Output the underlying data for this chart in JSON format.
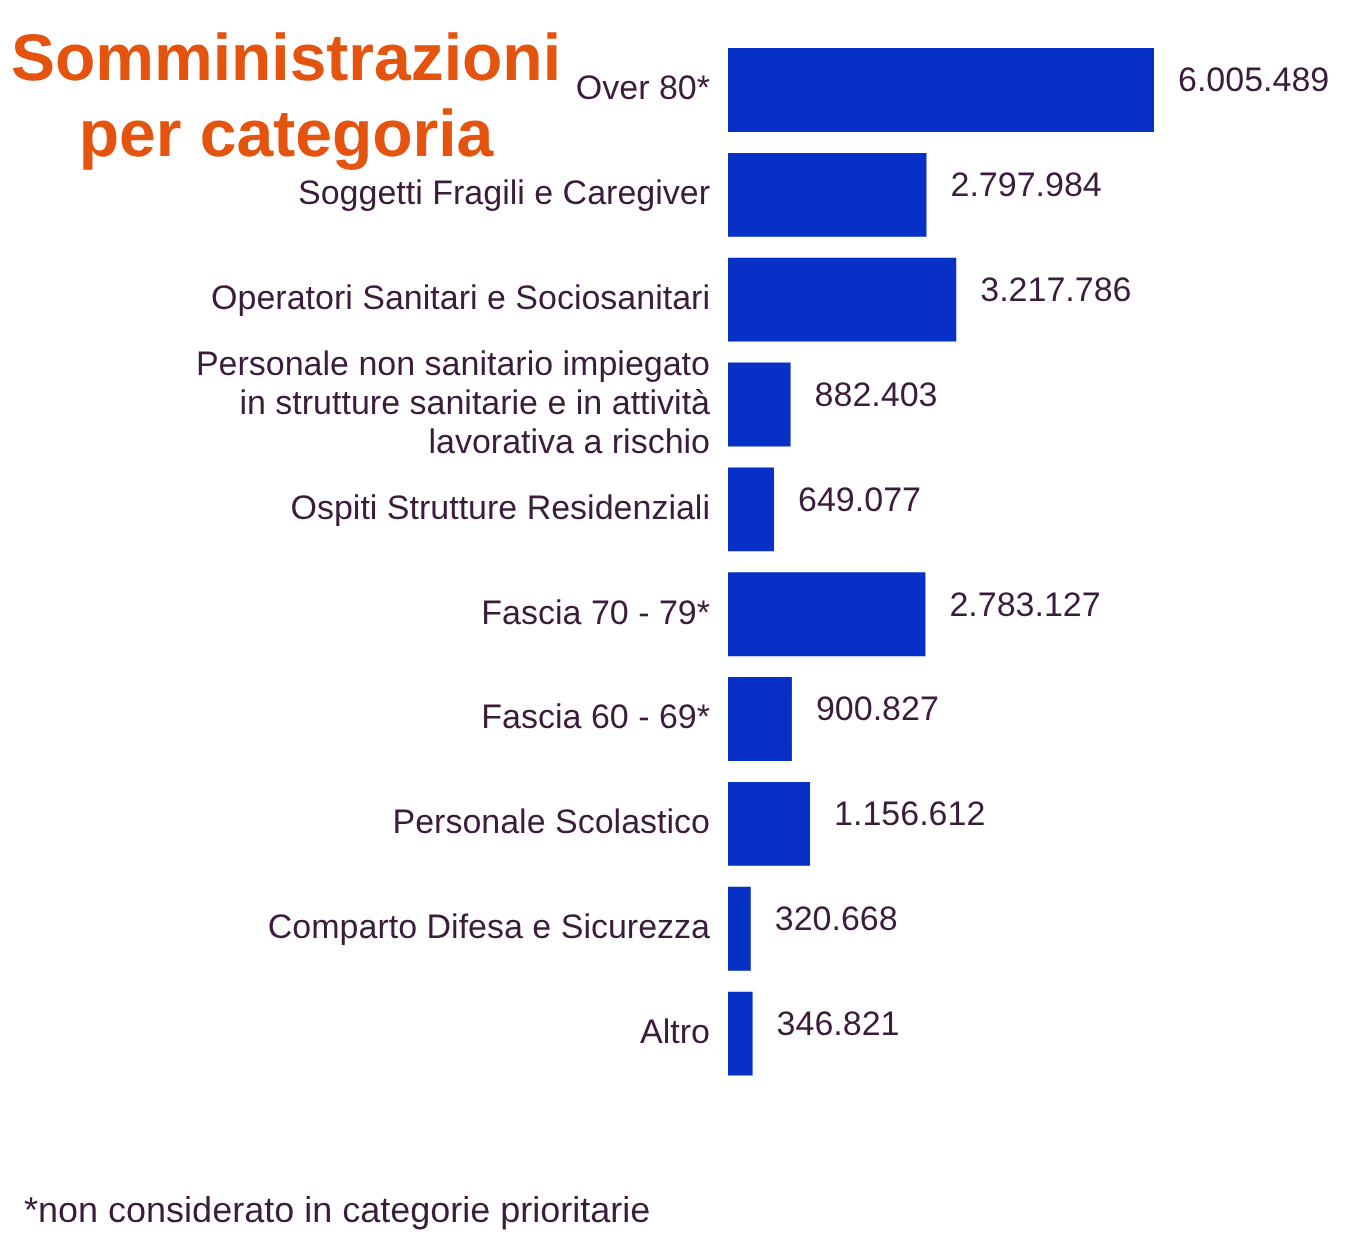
{
  "chart_data": {
    "type": "bar",
    "orientation": "horizontal",
    "title": "Somministrazioni per categoria",
    "categories": [
      "Over 80*",
      "Soggetti Fragili e Caregiver",
      "Operatori Sanitari e Sociosanitari",
      "Personale non sanitario impiegato in strutture sanitarie e in attività lavorativa a rischio",
      "Ospiti Strutture Residenziali",
      "Fascia 70 - 79*",
      "Fascia 60 - 69*",
      "Personale Scolastico",
      "Comparto Difesa e Sicurezza",
      "Altro"
    ],
    "values": [
      6005489,
      2797984,
      3217786,
      882403,
      649077,
      2783127,
      900827,
      1156612,
      320668,
      346821
    ],
    "value_labels": [
      "6.005.489",
      "2.797.984",
      "3.217.786",
      "882.403",
      "649.077",
      "2.783.127",
      "900.827",
      "1.156.612",
      "320.668",
      "346.821"
    ],
    "color": "#0630c6",
    "tick_labels": "y",
    "annotations": [
      "*non considerato in categorie prioritarie"
    ]
  }
}
